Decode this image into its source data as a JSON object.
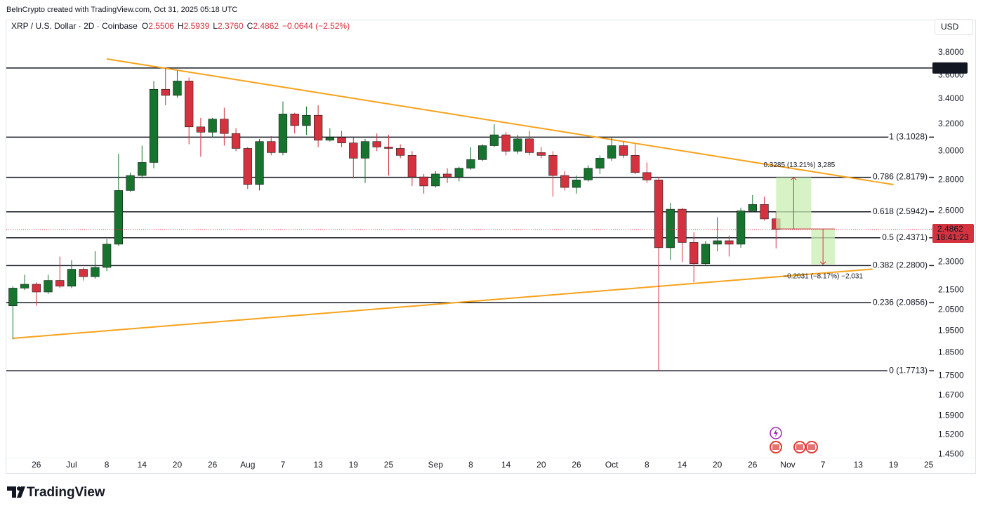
{
  "header": {
    "attribution": "BeInCrypto created with TradingView.com, Oct 31, 2025 05:18 UTC",
    "currency": "USD",
    "logo": "TradingView"
  },
  "chart_data": {
    "type": "candlestick",
    "title": "XRP / U.S. Dollar · 2D · Coinbase",
    "ohlc_labels": [
      "O",
      "H",
      "L",
      "C"
    ],
    "legend_values": [
      "2.5506",
      "2.5939",
      "2.3760",
      "2.4862"
    ],
    "change": "−0.0644 (−2.52%)",
    "up_color": "#17742f",
    "down_color": "#d4323f",
    "log_scale": true,
    "grid": false,
    "categories": [
      null,
      null,
      "26",
      null,
      null,
      "Jul",
      null,
      null,
      "8",
      null,
      null,
      "14",
      null,
      null,
      "20",
      null,
      null,
      "26",
      null,
      null,
      "Aug",
      null,
      null,
      "7",
      null,
      null,
      "13",
      null,
      null,
      "19",
      null,
      null,
      "25",
      null,
      null,
      null,
      "Sep",
      null,
      null,
      "8",
      null,
      null,
      "14",
      null,
      null,
      "20",
      null,
      null,
      "26",
      null,
      null,
      "Oct",
      null,
      null,
      "8",
      null,
      null,
      "14",
      null,
      null,
      "20",
      null,
      null,
      "26",
      null,
      null,
      "Nov",
      null,
      null,
      "7",
      null,
      null,
      "13",
      null,
      null,
      "19",
      null,
      null,
      "25"
    ],
    "open": [
      2.07,
      2.16,
      2.18,
      2.14,
      2.2,
      2.17,
      2.26,
      2.22,
      2.27,
      2.4,
      2.73,
      2.83,
      2.92,
      3.48,
      3.43,
      3.55,
      3.18,
      3.14,
      3.24,
      3.13,
      3.02,
      2.77,
      3.07,
      2.99,
      3.28,
      3.19,
      3.27,
      3.08,
      3.1,
      3.06,
      2.95,
      3.07,
      3.03,
      3.02,
      2.97,
      2.82,
      2.76,
      2.84,
      2.82,
      2.88,
      2.94,
      3.04,
      3.12,
      3.0,
      3.09,
      2.99,
      2.97,
      2.83,
      2.75,
      2.8,
      2.88,
      2.95,
      3.04,
      2.97,
      2.85,
      2.8,
      2.38,
      2.61,
      2.41,
      2.29,
      2.4,
      2.42,
      2.4,
      2.6,
      2.64,
      2.5506,
      null,
      null,
      null,
      null,
      null,
      null,
      null,
      null,
      null,
      null,
      null,
      null,
      null
    ],
    "high": [
      2.17,
      2.23,
      2.19,
      2.23,
      2.33,
      2.31,
      2.27,
      2.36,
      2.43,
      2.98,
      2.85,
      3.04,
      3.55,
      3.66,
      3.64,
      3.58,
      3.25,
      3.25,
      3.33,
      3.17,
      3.03,
      3.09,
      3.11,
      3.38,
      3.29,
      3.34,
      3.35,
      3.17,
      3.15,
      3.1,
      3.09,
      3.13,
      3.12,
      3.05,
      3.0,
      2.84,
      2.86,
      2.88,
      2.89,
      3.03,
      3.05,
      3.2,
      3.14,
      3.12,
      3.15,
      3.03,
      3.0,
      2.86,
      2.83,
      2.9,
      2.97,
      3.1,
      3.07,
      3.05,
      2.92,
      2.82,
      2.65,
      2.62,
      2.47,
      2.42,
      2.56,
      2.45,
      2.62,
      2.7,
      2.69,
      2.5939,
      null,
      null,
      null,
      null,
      null,
      null,
      null,
      null,
      null,
      null,
      null,
      null,
      null
    ],
    "low": [
      1.91,
      2.15,
      2.07,
      2.13,
      2.16,
      2.16,
      2.2,
      2.21,
      2.25,
      2.39,
      2.72,
      2.81,
      2.88,
      3.35,
      3.41,
      3.05,
      2.96,
      3.1,
      3.04,
      3.0,
      2.74,
      2.73,
      2.97,
      2.97,
      3.13,
      3.12,
      3.03,
      3.07,
      3.03,
      2.81,
      2.78,
      3.0,
      2.83,
      2.95,
      2.76,
      2.71,
      2.75,
      2.78,
      2.79,
      2.87,
      2.93,
      3.03,
      2.97,
      2.98,
      2.97,
      2.95,
      2.69,
      2.73,
      2.71,
      2.79,
      2.84,
      2.93,
      2.95,
      2.84,
      2.78,
      1.77,
      2.31,
      2.3,
      2.19,
      2.28,
      2.36,
      2.33,
      2.38,
      2.59,
      2.54,
      2.376,
      null,
      null,
      null,
      null,
      null,
      null,
      null,
      null,
      null,
      null,
      null,
      null,
      null
    ],
    "close": [
      2.16,
      2.18,
      2.14,
      2.2,
      2.17,
      2.26,
      2.22,
      2.27,
      2.4,
      2.73,
      2.83,
      2.92,
      3.48,
      3.43,
      3.55,
      3.18,
      3.14,
      3.24,
      3.13,
      3.02,
      2.77,
      3.07,
      2.99,
      3.28,
      3.19,
      3.27,
      3.08,
      3.1,
      3.06,
      2.95,
      3.07,
      3.03,
      3.02,
      2.97,
      2.82,
      2.76,
      2.84,
      2.82,
      2.88,
      2.94,
      3.04,
      3.12,
      3.0,
      3.09,
      2.99,
      2.97,
      2.83,
      2.75,
      2.8,
      2.88,
      2.95,
      3.04,
      2.97,
      2.85,
      2.8,
      2.38,
      2.61,
      2.41,
      2.29,
      2.4,
      2.42,
      2.4,
      2.6,
      2.64,
      2.55,
      2.4862,
      null,
      null,
      null,
      null,
      null,
      null,
      null,
      null,
      null,
      null,
      null,
      null,
      null
    ],
    "ylim": [
      1.443,
      3.997
    ],
    "yticks": [
      {
        "value": 3.8,
        "label": "3.8000"
      },
      {
        "value": 3.6,
        "label": "3.6000"
      },
      {
        "value": 3.4,
        "label": "3.4000"
      },
      {
        "value": 3.2,
        "label": "3.2000"
      },
      {
        "value": 3.0,
        "label": "3.0000"
      },
      {
        "value": 2.8,
        "label": "2.8000"
      },
      {
        "value": 2.6,
        "label": "2.6000"
      },
      {
        "value": 2.3,
        "label": "2.3000"
      },
      {
        "value": 2.15,
        "label": "2.1500"
      },
      {
        "value": 2.05,
        "label": "2.0500"
      },
      {
        "value": 1.95,
        "label": "1.9500"
      },
      {
        "value": 1.85,
        "label": "1.8500"
      },
      {
        "value": 1.75,
        "label": "1.7500"
      },
      {
        "value": 1.67,
        "label": "1.6700"
      },
      {
        "value": 1.59,
        "label": "1.5900"
      },
      {
        "value": 1.52,
        "label": "1.5200"
      },
      {
        "value": 1.45,
        "label": "1.4500"
      }
    ],
    "fib_levels": [
      {
        "label": "1 (3.1028)",
        "value": 3.1028
      },
      {
        "label": "0.786 (2.8179)",
        "value": 2.8179
      },
      {
        "label": "0.618 (2.5942)",
        "value": 2.5942
      },
      {
        "label": "0.5 (2.4371)",
        "value": 2.4371
      },
      {
        "label": "0.382 (2.2800)",
        "value": 2.28
      },
      {
        "label": "0.236 (2.0856)",
        "value": 2.0856
      },
      {
        "label": "0 (1.7713)",
        "value": 1.7713
      }
    ],
    "hlines": [
      3.6628
    ],
    "countdown": "18:41:23",
    "trendlines": [
      {
        "color": "#f7a21b",
        "x": [
          8,
          75
        ],
        "y": [
          3.743,
          2.769
        ]
      },
      {
        "color": "#f7a21b",
        "x": [
          0,
          75
        ],
        "y": [
          1.915,
          2.27
        ]
      }
    ],
    "measures": [
      {
        "label": "0.3285 (13.21%) 3,285",
        "x": [
          65,
          68
        ],
        "from": 2.4894,
        "to": 2.8179,
        "color": "#c9efb3"
      },
      {
        "label": "−0.2031 (−8.17%) −2,031",
        "x": [
          68,
          70
        ],
        "from": 2.4894,
        "to": 2.2863,
        "color": "#c9efb3"
      }
    ]
  }
}
